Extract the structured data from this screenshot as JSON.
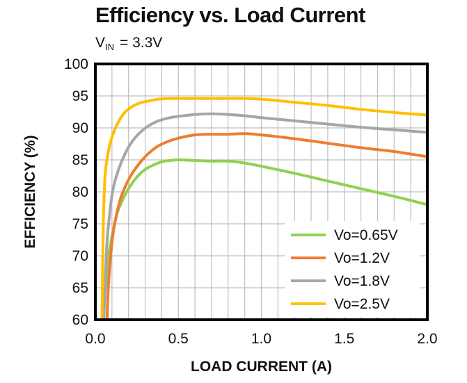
{
  "chart_data": {
    "type": "line",
    "title": "Efficiency vs. Load Current",
    "subtitle": {
      "main": "V",
      "sub": "IN",
      "rest": "= 3.3V"
    },
    "xlabel": "LOAD  CURRENT  (A)",
    "ylabel": "EFFICIENCY   (%)",
    "xlim": [
      0,
      2.0
    ],
    "ylim": [
      60,
      100
    ],
    "x_ticks": [
      "0.0",
      "0.5",
      "1.0",
      "1.5",
      "2.0"
    ],
    "y_ticks": [
      "60",
      "65",
      "70",
      "75",
      "80",
      "85",
      "90",
      "95",
      "100"
    ],
    "grid": true,
    "legend_position": "bottom-right",
    "series": [
      {
        "name": "Vo=0.65V",
        "color": "#92D050",
        "x": [
          0.05,
          0.06,
          0.08,
          0.1,
          0.13,
          0.16,
          0.2,
          0.25,
          0.3,
          0.35,
          0.4,
          0.45,
          0.5,
          0.6,
          0.7,
          0.8,
          0.9,
          1.0,
          1.2,
          1.4,
          1.6,
          1.8,
          2.0
        ],
        "y": [
          60,
          65,
          70,
          73,
          76.5,
          78.5,
          80.5,
          82.3,
          83.5,
          84.2,
          84.7,
          84.9,
          85,
          84.9,
          84.8,
          84.8,
          84.5,
          84,
          82.9,
          81.7,
          80.5,
          79.3,
          78
        ]
      },
      {
        "name": "Vo=1.2V",
        "color": "#ED7D31",
        "x": [
          0.07,
          0.08,
          0.1,
          0.12,
          0.15,
          0.18,
          0.22,
          0.27,
          0.32,
          0.38,
          0.45,
          0.5,
          0.6,
          0.7,
          0.8,
          0.9,
          1.0,
          1.2,
          1.4,
          1.6,
          1.8,
          2.0
        ],
        "y": [
          60,
          66,
          72,
          75.5,
          78.8,
          80.8,
          82.8,
          84.6,
          86,
          87.2,
          88,
          88.4,
          88.9,
          89,
          89,
          89.1,
          88.9,
          88.3,
          87.6,
          86.9,
          86.3,
          85.5
        ]
      },
      {
        "name": "Vo=1.8V",
        "color": "#A6A6A6",
        "x": [
          0.05,
          0.06,
          0.07,
          0.09,
          0.11,
          0.14,
          0.18,
          0.22,
          0.27,
          0.32,
          0.38,
          0.45,
          0.5,
          0.6,
          0.7,
          0.8,
          0.9,
          1.0,
          1.2,
          1.4,
          1.6,
          1.8,
          2.0
        ],
        "y": [
          60,
          66,
          72,
          77.5,
          80.8,
          83.5,
          86,
          87.8,
          89.3,
          90.3,
          91.1,
          91.6,
          91.8,
          92.1,
          92.2,
          92.1,
          91.9,
          91.6,
          91.1,
          90.6,
          90.1,
          89.7,
          89.3
        ]
      },
      {
        "name": "Vo=2.5V",
        "color": "#FFC000",
        "x": [
          0.04,
          0.045,
          0.05,
          0.06,
          0.08,
          0.1,
          0.13,
          0.17,
          0.22,
          0.27,
          0.32,
          0.38,
          0.45,
          0.5,
          0.6,
          0.7,
          0.8,
          0.9,
          1.0,
          1.2,
          1.4,
          1.6,
          1.8,
          2.0
        ],
        "y": [
          60,
          70,
          77,
          83,
          86.5,
          88.5,
          90.5,
          92.2,
          93.3,
          93.9,
          94.2,
          94.5,
          94.6,
          94.6,
          94.6,
          94.6,
          94.6,
          94.6,
          94.5,
          94,
          93.5,
          92.9,
          92.4,
          92
        ]
      }
    ]
  }
}
